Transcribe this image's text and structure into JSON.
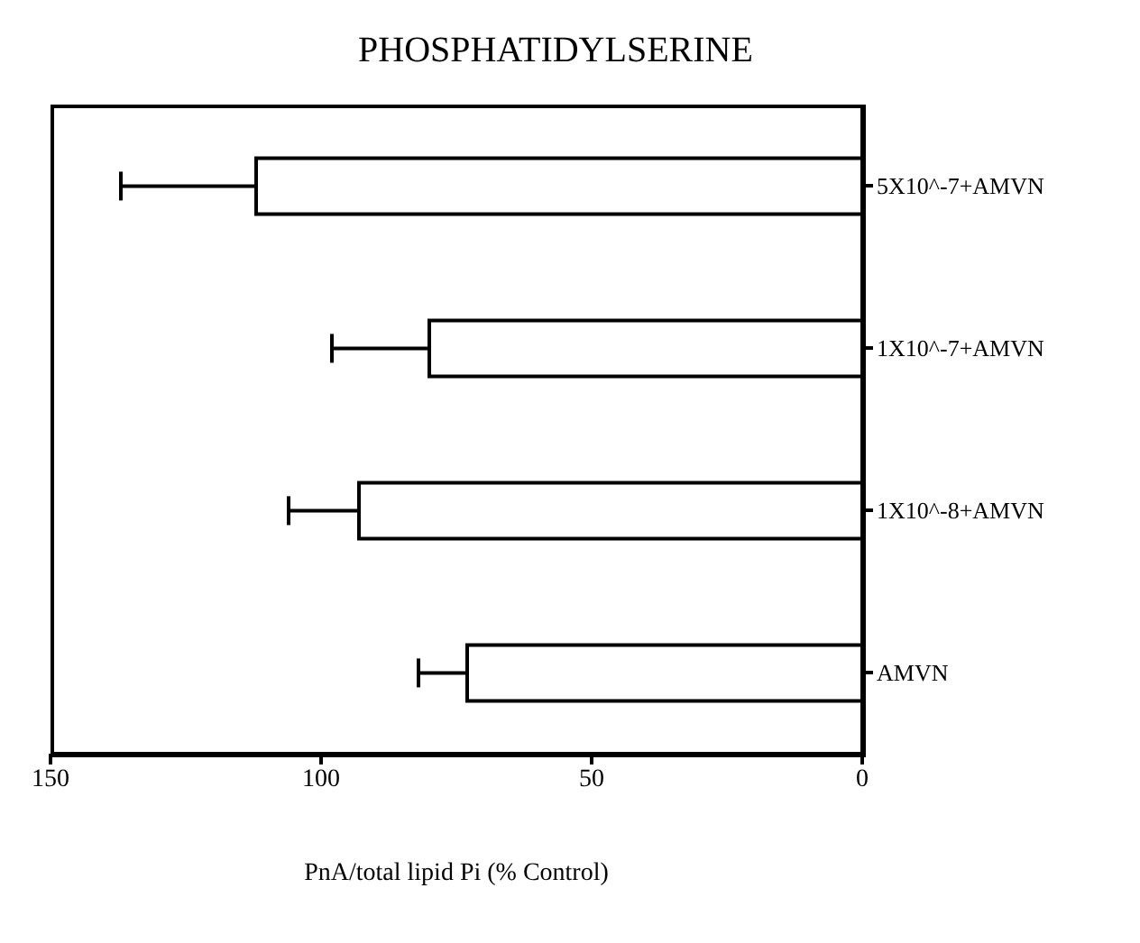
{
  "chart_data": {
    "type": "bar",
    "orientation": "horizontal",
    "title": "PHOSPHATIDYLSERINE",
    "xlabel": "PnA/total lipid Pi\n(% Control)",
    "categories": [
      "5X10^-7+AMVN",
      "1X10^-7+AMVN",
      "1X10^-8+AMVN",
      "AMVN"
    ],
    "values": [
      112,
      80,
      93,
      73
    ],
    "errors": [
      [
        112,
        137
      ],
      [
        80,
        98
      ],
      [
        93,
        106
      ],
      [
        73,
        82
      ]
    ],
    "color": "#ffffff",
    "xlim": [
      150,
      0
    ],
    "xticks": [
      150,
      100,
      50,
      0
    ],
    "grid": false
  }
}
